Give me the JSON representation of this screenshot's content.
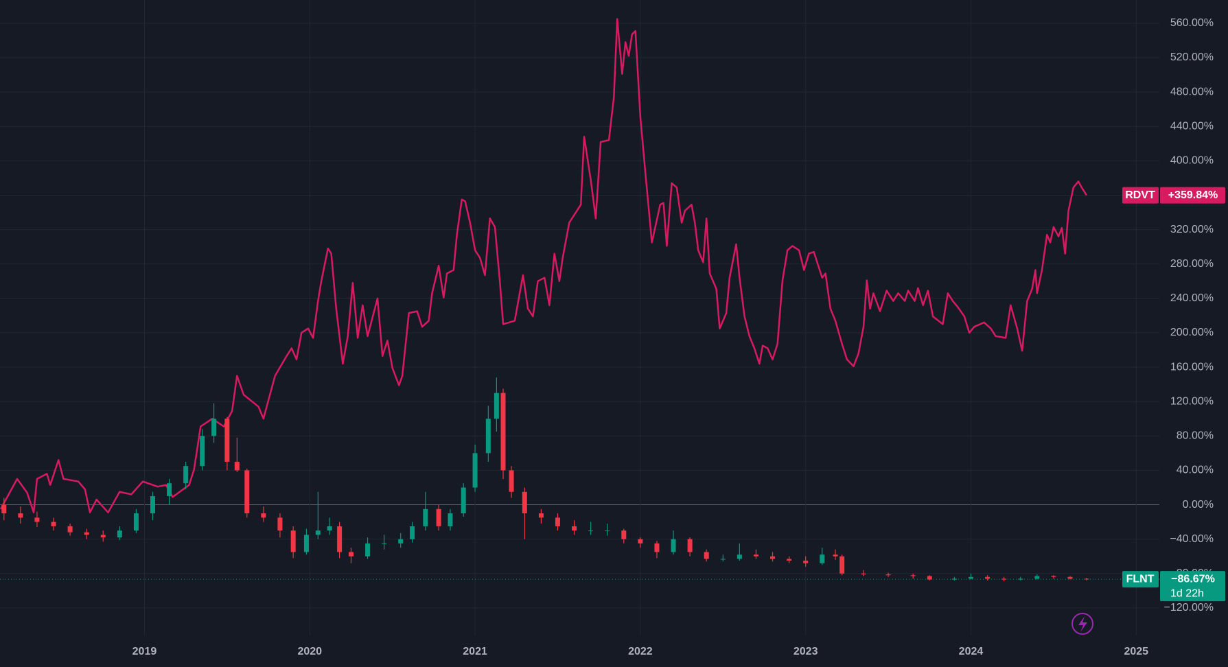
{
  "chart_data": {
    "type": "line",
    "xlim": [
      2018.126,
      2025.14
    ],
    "xticks": [
      2019,
      2020,
      2021,
      2022,
      2023,
      2024,
      2025
    ],
    "ylim": [
      -152,
      587
    ],
    "yticks": [
      {
        "value": -120,
        "label": "−120.00%"
      },
      {
        "value": -80,
        "label": "−80.00%"
      },
      {
        "value": -40,
        "label": "−40.00%"
      },
      {
        "value": 0,
        "label": "0.00%"
      },
      {
        "value": 40,
        "label": "40.00%"
      },
      {
        "value": 80,
        "label": "80.00%"
      },
      {
        "value": 120,
        "label": "120.00%"
      },
      {
        "value": 160,
        "label": "160.00%"
      },
      {
        "value": 200,
        "label": "200.00%"
      },
      {
        "value": 240,
        "label": "240.00%"
      },
      {
        "value": 280,
        "label": "280.00%"
      },
      {
        "value": 320,
        "label": "320.00%"
      },
      {
        "value": 360,
        "label": "360.00%"
      },
      {
        "value": 400,
        "label": "400.00%"
      },
      {
        "value": 440,
        "label": "440.00%"
      },
      {
        "value": 480,
        "label": "480.00%"
      },
      {
        "value": 520,
        "label": "520.00%"
      },
      {
        "value": 560,
        "label": "560.00%"
      }
    ],
    "grid": true,
    "series": [
      {
        "name": "RDVT",
        "type": "line",
        "color": "#d81b60",
        "last_label": "+359.84%",
        "x": [
          2018.13,
          2018.23,
          2018.29,
          2018.33,
          2018.35,
          2018.41,
          2018.43,
          2018.48,
          2018.51,
          2018.6,
          2018.64,
          2018.67,
          2018.71,
          2018.78,
          2018.85,
          2018.92,
          2018.99,
          2019.08,
          2019.13,
          2019.17,
          2019.27,
          2019.3,
          2019.34,
          2019.41,
          2019.48,
          2019.53,
          2019.56,
          2019.6,
          2019.69,
          2019.72,
          2019.79,
          2019.86,
          2019.89,
          2019.92,
          2019.95,
          2019.99,
          2020.02,
          2020.05,
          2020.07,
          2020.11,
          2020.13,
          2020.16,
          2020.2,
          2020.23,
          2020.26,
          2020.29,
          2020.32,
          2020.35,
          2020.41,
          2020.44,
          2020.47,
          2020.5,
          2020.54,
          2020.56,
          2020.6,
          2020.65,
          2020.68,
          2020.72,
          2020.74,
          2020.78,
          2020.81,
          2020.83,
          2020.87,
          2020.89,
          2020.92,
          2020.94,
          2020.97,
          2021.0,
          2021.03,
          2021.06,
          2021.09,
          2021.12,
          2021.15,
          2021.17,
          2021.24,
          2021.29,
          2021.32,
          2021.35,
          2021.38,
          2021.42,
          2021.45,
          2021.48,
          2021.51,
          2021.53,
          2021.57,
          2021.64,
          2021.66,
          2021.7,
          2021.73,
          2021.76,
          2021.81,
          2021.84,
          2021.86,
          2021.89,
          2021.91,
          2021.93,
          2021.95,
          2021.97,
          2022.0,
          2022.03,
          2022.07,
          2022.12,
          2022.14,
          2022.16,
          2022.19,
          2022.22,
          2022.25,
          2022.27,
          2022.31,
          2022.33,
          2022.35,
          2022.38,
          2022.4,
          2022.42,
          2022.46,
          2022.48,
          2022.52,
          2022.54,
          2022.58,
          2022.6,
          2022.63,
          2022.66,
          2022.69,
          2022.72,
          2022.74,
          2022.77,
          2022.8,
          2022.83,
          2022.86,
          2022.89,
          2022.92,
          2022.96,
          2022.99,
          2023.02,
          2023.05,
          2023.07,
          2023.1,
          2023.12,
          2023.15,
          2023.18,
          2023.22,
          2023.25,
          2023.29,
          2023.32,
          2023.35,
          2023.37,
          2023.39,
          2023.41,
          2023.45,
          2023.49,
          2023.53,
          2023.56,
          2023.6,
          2023.62,
          2023.66,
          2023.68,
          2023.71,
          2023.74,
          2023.77,
          2023.83,
          2023.86,
          2023.89,
          2023.92,
          2023.96,
          2023.99,
          2024.02,
          2024.08,
          2024.12,
          2024.15,
          2024.21,
          2024.24,
          2024.28,
          2024.31,
          2024.34,
          2024.37,
          2024.39,
          2024.4,
          2024.43,
          2024.46,
          2024.48,
          2024.5,
          2024.53,
          2024.55,
          2024.57,
          2024.59,
          2024.62,
          2024.65,
          2024.67,
          2024.7
        ],
        "values": [
          -5,
          30,
          14,
          -9,
          30,
          36,
          23,
          52,
          30,
          27,
          18,
          -9,
          6,
          -9,
          15,
          12,
          27,
          21,
          23,
          9,
          23,
          41,
          91,
          100,
          91,
          109,
          150,
          128,
          114,
          100,
          150,
          173,
          182,
          169,
          200,
          205,
          194,
          237,
          260,
          298,
          292,
          228,
          164,
          196,
          258,
          194,
          232,
          196,
          240,
          173,
          191,
          159,
          139,
          150,
          223,
          225,
          207,
          214,
          246,
          278,
          241,
          269,
          273,
          314,
          355,
          353,
          328,
          296,
          287,
          267,
          333,
          323,
          260,
          210,
          214,
          267,
          228,
          219,
          260,
          264,
          232,
          292,
          260,
          287,
          328,
          349,
          428,
          378,
          333,
          422,
          424,
          474,
          565,
          501,
          538,
          522,
          547,
          551,
          451,
          387,
          305,
          349,
          351,
          301,
          374,
          369,
          328,
          342,
          349,
          328,
          296,
          282,
          333,
          269,
          251,
          205,
          223,
          264,
          303,
          264,
          219,
          196,
          182,
          164,
          185,
          182,
          169,
          187,
          261,
          296,
          301,
          296,
          273,
          292,
          294,
          282,
          264,
          269,
          228,
          214,
          187,
          169,
          161,
          176,
          207,
          261,
          228,
          246,
          225,
          249,
          237,
          246,
          237,
          249,
          237,
          252,
          232,
          249,
          219,
          210,
          246,
          237,
          230,
          219,
          200,
          207,
          212,
          205,
          196,
          194,
          232,
          205,
          179,
          237,
          251,
          273,
          246,
          273,
          314,
          305,
          323,
          312,
          322,
          292,
          342,
          369,
          376,
          369,
          359.84
        ]
      },
      {
        "name": "FLNT",
        "type": "candlestick",
        "up_color": "#089981",
        "down_color": "#f23645",
        "last_label": "−86.67%",
        "countdown": "1d 22h",
        "x": [
          2018.15,
          2018.25,
          2018.35,
          2018.45,
          2018.55,
          2018.65,
          2018.75,
          2018.85,
          2018.95,
          2019.05,
          2019.15,
          2019.25,
          2019.35,
          2019.42,
          2019.5,
          2019.56,
          2019.62,
          2019.72,
          2019.82,
          2019.9,
          2019.98,
          2020.05,
          2020.12,
          2020.18,
          2020.25,
          2020.35,
          2020.45,
          2020.55,
          2020.62,
          2020.7,
          2020.78,
          2020.85,
          2020.93,
          2021.0,
          2021.08,
          2021.13,
          2021.17,
          2021.22,
          2021.3,
          2021.4,
          2021.5,
          2021.6,
          2021.7,
          2021.8,
          2021.9,
          2022.0,
          2022.1,
          2022.2,
          2022.3,
          2022.4,
          2022.5,
          2022.6,
          2022.7,
          2022.8,
          2022.9,
          2023.0,
          2023.1,
          2023.18,
          2023.22,
          2023.35,
          2023.5,
          2023.65,
          2023.75,
          2023.9,
          2024.0,
          2024.1,
          2024.2,
          2024.3,
          2024.4,
          2024.5,
          2024.6,
          2024.7
        ],
        "open": [
          0,
          -10,
          -15,
          -20,
          -25,
          -32,
          -35,
          -38,
          -30,
          -10,
          10,
          25,
          45,
          80,
          100,
          50,
          40,
          -10,
          -15,
          -30,
          -55,
          -35,
          -30,
          -25,
          -55,
          -60,
          -45,
          -45,
          -40,
          -25,
          -5,
          -25,
          -10,
          20,
          60,
          100,
          130,
          40,
          15,
          -10,
          -15,
          -25,
          -30,
          -30,
          -30,
          -40,
          -45,
          -55,
          -40,
          -55,
          -63,
          -63,
          -58,
          -60,
          -63,
          -65,
          -68,
          -58,
          -60,
          -80,
          -81,
          -82,
          -83,
          -87,
          -86,
          -84,
          -86,
          -87,
          -86,
          -83,
          -84,
          -86
        ],
        "high": [
          8,
          -2,
          -8,
          -15,
          -22,
          -28,
          -30,
          -25,
          -5,
          15,
          30,
          50,
          88,
          118,
          102,
          78,
          42,
          -2,
          -10,
          -25,
          -28,
          15,
          -15,
          -20,
          -50,
          -38,
          -35,
          -33,
          -20,
          15,
          0,
          -5,
          25,
          70,
          115,
          148,
          135,
          45,
          20,
          -5,
          -10,
          -18,
          -20,
          -22,
          -28,
          -38,
          -42,
          -30,
          -38,
          -52,
          -58,
          -45,
          -52,
          -55,
          -60,
          -60,
          -50,
          -52,
          -58,
          -76,
          -79,
          -80,
          -82,
          -84,
          -80,
          -82,
          -84,
          -84,
          -81,
          -82,
          -83,
          -85
        ],
        "low": [
          -18,
          -22,
          -26,
          -30,
          -36,
          -40,
          -43,
          -41,
          -33,
          -18,
          0,
          18,
          40,
          72,
          40,
          38,
          -15,
          -20,
          -38,
          -62,
          -58,
          -40,
          -35,
          -62,
          -68,
          -63,
          -52,
          -50,
          -44,
          -30,
          -30,
          -30,
          -14,
          15,
          50,
          85,
          30,
          8,
          -40,
          -22,
          -30,
          -35,
          -35,
          -36,
          -45,
          -50,
          -62,
          -58,
          -60,
          -66,
          -66,
          -65,
          -63,
          -66,
          -68,
          -72,
          -70,
          -64,
          -82,
          -83,
          -84,
          -86,
          -88,
          -88,
          -87,
          -88,
          -89,
          -88,
          -87,
          -86,
          -87,
          -88
        ],
        "close": [
          -10,
          -15,
          -20,
          -25,
          -32,
          -35,
          -38,
          -30,
          -10,
          10,
          25,
          45,
          80,
          100,
          50,
          40,
          -10,
          -15,
          -30,
          -55,
          -35,
          -30,
          -25,
          -55,
          -60,
          -45,
          -45,
          -40,
          -25,
          -5,
          -25,
          -10,
          20,
          60,
          100,
          130,
          40,
          15,
          -10,
          -15,
          -25,
          -30,
          -30,
          -30,
          -40,
          -45,
          -55,
          -40,
          -55,
          -63,
          -63,
          -58,
          -60,
          -63,
          -65,
          -68,
          -58,
          -60,
          -80,
          -81,
          -82,
          -83,
          -87,
          -86,
          -84,
          -86,
          -87,
          -86,
          -83,
          -84,
          -86,
          -86.67
        ]
      }
    ]
  }
}
